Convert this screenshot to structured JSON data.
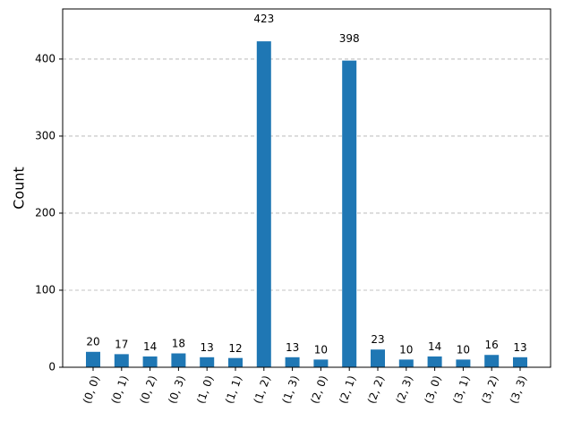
{
  "chart_data": {
    "type": "bar",
    "ylabel": "Count",
    "categories": [
      "(0, 0)",
      "(0, 1)",
      "(0, 2)",
      "(0, 3)",
      "(1, 0)",
      "(1, 1)",
      "(1, 2)",
      "(1, 3)",
      "(2, 0)",
      "(2, 1)",
      "(2, 2)",
      "(2, 3)",
      "(3, 0)",
      "(3, 1)",
      "(3, 2)",
      "(3, 3)"
    ],
    "values": [
      20,
      17,
      14,
      18,
      13,
      12,
      423,
      13,
      10,
      398,
      23,
      10,
      14,
      10,
      16,
      13
    ],
    "color": "#1f77b4",
    "ylim": [
      0,
      465
    ],
    "yticks": [
      0,
      100,
      200,
      300,
      400
    ],
    "grid": true
  }
}
